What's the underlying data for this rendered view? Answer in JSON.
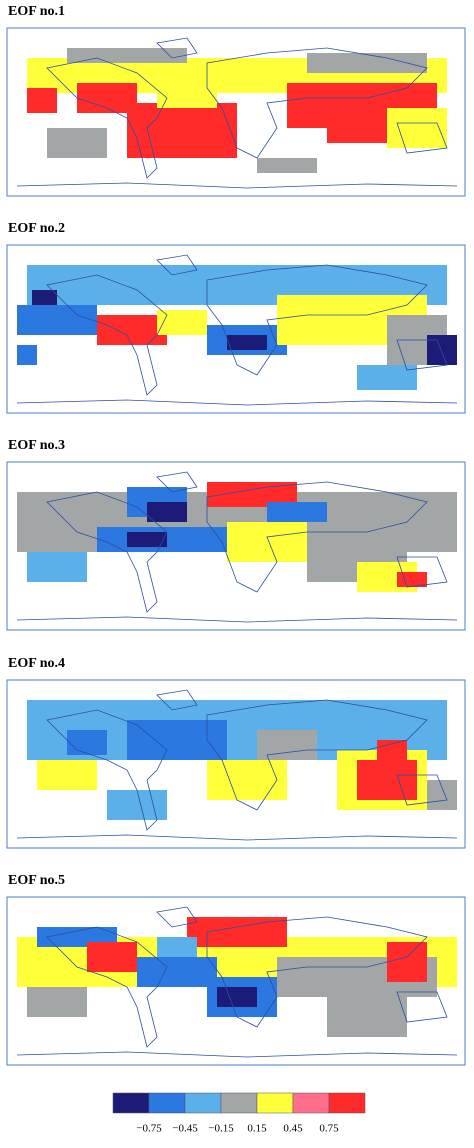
{
  "panels": [
    {
      "title": "EOF no.1"
    },
    {
      "title": "EOF no.2"
    },
    {
      "title": "EOF no.3"
    },
    {
      "title": "EOF no.4"
    },
    {
      "title": "EOF no.5"
    }
  ],
  "legend": {
    "colors": [
      "#1c1c78",
      "#2a78e0",
      "#5cb0ea",
      "#a2a6a6",
      "#ffff3a",
      "#ff6f8c",
      "#ff2b2b"
    ],
    "labels": [
      "−0.75",
      "−0.45",
      "−0.15",
      "0.15",
      "0.45",
      "0.75"
    ]
  }
}
